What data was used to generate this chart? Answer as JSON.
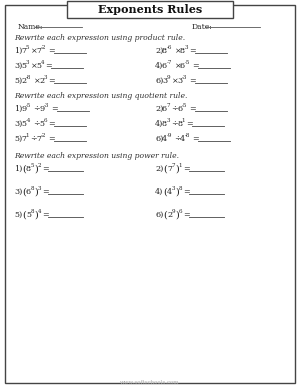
{
  "title": "Exponents Rules",
  "background": "#ffffff",
  "border_color": "#444444",
  "name_label": "Name:",
  "date_label": "Date:",
  "section1_header": "Rewrite each expression using product rule.",
  "section2_header": "Rewrite each expression using quotient rule.",
  "section3_header": "Rewrite each expression using power rule.",
  "product_data": [
    [
      "1)",
      "7",
      "5",
      "×",
      "7",
      "-2"
    ],
    [
      "2)",
      "8",
      "-6",
      "×",
      "8",
      "3"
    ],
    [
      "3)",
      "5",
      "3",
      "×",
      "5",
      "4"
    ],
    [
      "4)",
      "6",
      "-7",
      "×",
      "6",
      "-5"
    ],
    [
      "5)",
      "2",
      "-8",
      "×",
      "2",
      "3"
    ],
    [
      "6)",
      "3",
      "9",
      "×",
      "3",
      "-3"
    ]
  ],
  "quotient_data": [
    [
      "1)",
      "9",
      "-5",
      "÷",
      "9",
      "-3"
    ],
    [
      "2)",
      "6",
      "7",
      "÷",
      "6",
      "-5"
    ],
    [
      "3)",
      "5",
      "-4",
      "÷",
      "5",
      "6"
    ],
    [
      "4)",
      "8",
      "3",
      "÷",
      "8",
      "1"
    ],
    [
      "5)",
      "7",
      "1",
      "÷",
      "7",
      "-2"
    ],
    [
      "6)",
      "4",
      "-9",
      "÷",
      "4",
      "-8"
    ]
  ],
  "power_data": [
    [
      "1)",
      "8",
      "5",
      "2"
    ],
    [
      "2)",
      "7",
      "7",
      "1"
    ],
    [
      "3)",
      "6",
      "8",
      "3"
    ],
    [
      "4)",
      "4",
      "3",
      "8"
    ],
    [
      "5)",
      "5",
      "8",
      "4"
    ],
    [
      "6)",
      "2",
      "9",
      "6"
    ]
  ],
  "watermark": "www.softschools.com",
  "line_color": "#555555",
  "text_color": "#222222",
  "section_color": "#333333",
  "blob1_color": "#f08080",
  "blob2_color": "#87b8f0",
  "blob3_color": "#f0b870",
  "blob4_color": "#90b8f0"
}
